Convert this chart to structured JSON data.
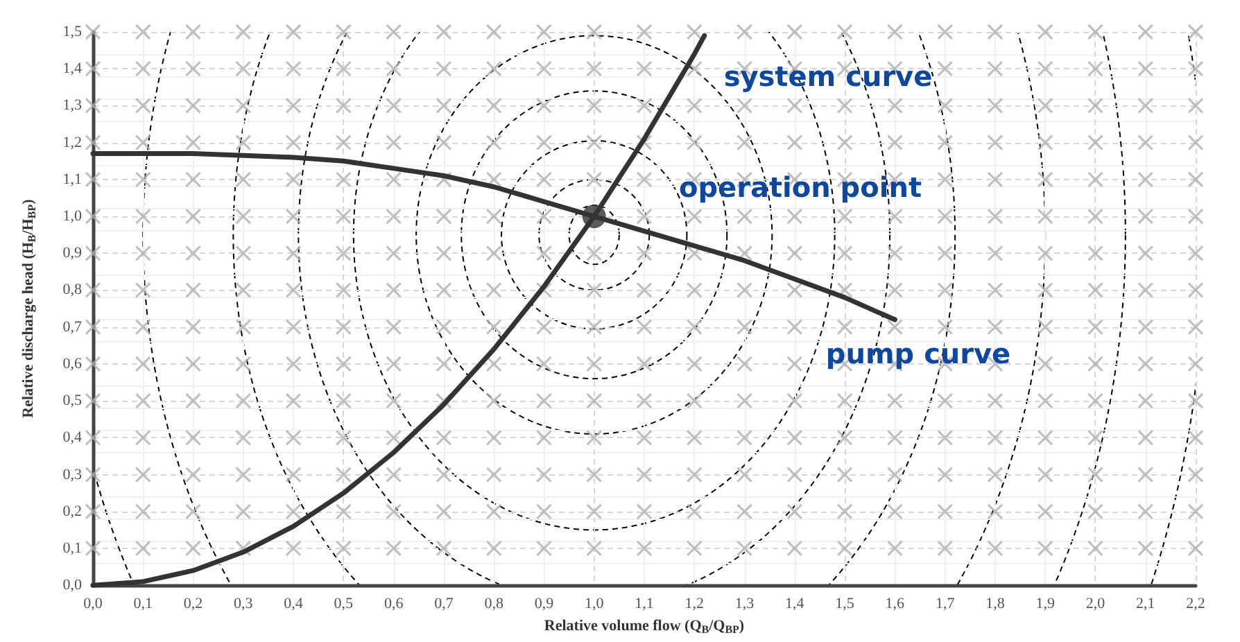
{
  "chart_data": {
    "type": "line",
    "xlabel": "Relative volume flow (Q$_{B}$/Q$_{BP}$)",
    "ylabel": "Relative discharge head (H$_{B}$/H$_{BP}$)",
    "xlim": [
      0,
      2.2
    ],
    "ylim": [
      0,
      1.5
    ],
    "xticks": [
      {
        "value": 0,
        "label": "0,0"
      },
      {
        "value": 0.1,
        "label": "0,1"
      },
      {
        "value": 0.2,
        "label": "0,2"
      },
      {
        "value": 0.3,
        "label": "0,3"
      },
      {
        "value": 0.4,
        "label": "0,4"
      },
      {
        "value": 0.5,
        "label": "0,5"
      },
      {
        "value": 0.6,
        "label": "0,6"
      },
      {
        "value": 0.7,
        "label": "0,7"
      },
      {
        "value": 0.8,
        "label": "0,8"
      },
      {
        "value": 0.9,
        "label": "0,9"
      },
      {
        "value": 1.0,
        "label": "1,0"
      },
      {
        "value": 1.1,
        "label": "1,1"
      },
      {
        "value": 1.2,
        "label": "1,2"
      },
      {
        "value": 1.3,
        "label": "1,3"
      },
      {
        "value": 1.4,
        "label": "1,4"
      },
      {
        "value": 1.5,
        "label": "1,5"
      },
      {
        "value": 1.6,
        "label": "1,6"
      },
      {
        "value": 1.7,
        "label": "1,7"
      },
      {
        "value": 1.8,
        "label": "1,8"
      },
      {
        "value": 1.9,
        "label": "1,9"
      },
      {
        "value": 2.0,
        "label": "2,0"
      },
      {
        "value": 2.1,
        "label": "2,1"
      },
      {
        "value": 2.2,
        "label": "2,2"
      }
    ],
    "yticks": [
      {
        "value": 0,
        "label": "0,0"
      },
      {
        "value": 0.1,
        "label": "0,1"
      },
      {
        "value": 0.2,
        "label": "0,2"
      },
      {
        "value": 0.3,
        "label": "0,3"
      },
      {
        "value": 0.4,
        "label": "0,4"
      },
      {
        "value": 0.5,
        "label": "0,5"
      },
      {
        "value": 0.6,
        "label": "0,6"
      },
      {
        "value": 0.7,
        "label": "0,7"
      },
      {
        "value": 0.8,
        "label": "0,8"
      },
      {
        "value": 0.9,
        "label": "0,9"
      },
      {
        "value": 1.0,
        "label": "1,0"
      },
      {
        "value": 1.1,
        "label": "1,1"
      },
      {
        "value": 1.2,
        "label": "1,2"
      },
      {
        "value": 1.3,
        "label": "1,3"
      },
      {
        "value": 1.4,
        "label": "1,4"
      },
      {
        "value": 1.5,
        "label": "1,5"
      }
    ],
    "grid": true,
    "marker": "none",
    "line_style": "solid",
    "annotations": [
      "system curve",
      "operation point",
      "pump curve"
    ],
    "series": [
      {
        "type": "scatter",
        "marker": "cross",
        "color": "#b0b0b0",
        "x": [
          0,
          0.1,
          0.2,
          0.3,
          0.4,
          0.5,
          0.6,
          0.7,
          0.8,
          0.9,
          1.0,
          1.1,
          1.2,
          1.3,
          1.4,
          1.5,
          1.6,
          1.7,
          1.8,
          1.9,
          2.0,
          2.1,
          2.2,
          0,
          0.1,
          0.2,
          0.3,
          0.4,
          0.5,
          0.6,
          0.7,
          0.8,
          0.9,
          1.0,
          1.1,
          1.2,
          1.3,
          1.4,
          1.5,
          1.6,
          1.7,
          1.8,
          1.9,
          2.0,
          2.1,
          2.2,
          0,
          0.1,
          0.2,
          0.3,
          0.4,
          0.5,
          0.6,
          0.7,
          0.8,
          0.9,
          1.0,
          1.1,
          1.2,
          1.3,
          1.4,
          1.5,
          1.6,
          1.7,
          1.8,
          1.9,
          2.0,
          2.1,
          2.2,
          0,
          0.1,
          0.2,
          0.3,
          0.4,
          0.5,
          0.6,
          0.7,
          0.8,
          0.9,
          1.0,
          1.1,
          1.2,
          1.3,
          1.4,
          1.5,
          1.6,
          1.7,
          1.8,
          1.9,
          2.0,
          2.1,
          2.2,
          0,
          0.1,
          0.2,
          0.3,
          0.4,
          0.5,
          0.6,
          0.7,
          0.8,
          0.9,
          1.0,
          1.1,
          1.2,
          1.3,
          1.4,
          1.5,
          1.6,
          1.7,
          1.8,
          1.9,
          2.0,
          2.1,
          2.2,
          0,
          0.1,
          0.2,
          0.3,
          0.4,
          0.5,
          0.6,
          0.7,
          0.8,
          0.9,
          1.0,
          1.1,
          1.2,
          1.3,
          1.4,
          1.5,
          1.6,
          1.7,
          1.8,
          1.9,
          2.0,
          2.1,
          2.2,
          0,
          0.1,
          0.2,
          0.3,
          0.4,
          0.5,
          0.6,
          0.7,
          0.8,
          0.9,
          1.0,
          1.1,
          1.2,
          1.3,
          1.4,
          1.5,
          1.6,
          1.7,
          1.8,
          1.9,
          2.0,
          2.1,
          2.2,
          0,
          0.1,
          0.2,
          0.3,
          0.4,
          0.5,
          0.6,
          0.7,
          0.8,
          0.9,
          1.0,
          1.1,
          1.2,
          1.3,
          1.4,
          1.5,
          1.6,
          1.7,
          1.8,
          1.9,
          2.0,
          2.1,
          2.2,
          0,
          0.1,
          0.2,
          0.3,
          0.4,
          0.5,
          0.6,
          0.7,
          0.8,
          0.9,
          1.0,
          1.1,
          1.2,
          1.3,
          1.4,
          1.5,
          1.6,
          1.7,
          1.8,
          1.9,
          2.0,
          2.1,
          2.2,
          0,
          0.1,
          0.2,
          0.3,
          0.4,
          0.5,
          0.6,
          0.7,
          0.8,
          0.9,
          1.0,
          1.1,
          1.2,
          1.3,
          1.4,
          1.5,
          1.6,
          1.7,
          1.8,
          1.9,
          2.0,
          2.1,
          2.2,
          0,
          0.1,
          0.2,
          0.3,
          0.4,
          0.5,
          0.6,
          0.7,
          0.8,
          0.9,
          1.0,
          1.1,
          1.2,
          1.3,
          1.4,
          1.5,
          1.6,
          1.7,
          1.8,
          1.9,
          2.0,
          2.1,
          2.2,
          0,
          0.1,
          0.2,
          0.3,
          0.4,
          0.5,
          0.6,
          0.7,
          0.8,
          0.9,
          1.0,
          1.1,
          1.2,
          1.3,
          1.4,
          1.5,
          1.6,
          1.7,
          1.8,
          1.9,
          2.0,
          2.1,
          2.2,
          0,
          0.1,
          0.2,
          0.3,
          0.4,
          0.5,
          0.6,
          0.7,
          0.8,
          0.9,
          1.0,
          1.1,
          1.2,
          1.3,
          1.4,
          1.5,
          1.6,
          1.7,
          1.8,
          1.9,
          2.0,
          2.1,
          2.2,
          0,
          0.1,
          0.2,
          0.3,
          0.4,
          0.5,
          0.6,
          0.7,
          0.8,
          0.9,
          1.0,
          1.1,
          1.2,
          1.3,
          1.4,
          1.5,
          1.6,
          1.7,
          1.8,
          1.9,
          2.0,
          2.1,
          2.2,
          0,
          0.1,
          0.2,
          0.3,
          0.4,
          0.5,
          0.6,
          0.7,
          0.8,
          0.9,
          1.0,
          1.1,
          1.2,
          1.3,
          1.4,
          1.5,
          1.6,
          1.7,
          1.8,
          1.9,
          2.0,
          2.1,
          2.2
        ],
        "values": [
          0.1,
          0.1,
          0.1,
          0.1,
          0.1,
          0.1,
          0.1,
          0.1,
          0.1,
          0.1,
          0.1,
          0.1,
          0.1,
          0.1,
          0.1,
          0.1,
          0.1,
          0.1,
          0.1,
          0.1,
          0.1,
          0.1,
          0.1,
          0.2,
          0.2,
          0.2,
          0.2,
          0.2,
          0.2,
          0.2,
          0.2,
          0.2,
          0.2,
          0.2,
          0.2,
          0.2,
          0.2,
          0.2,
          0.2,
          0.2,
          0.2,
          0.2,
          0.2,
          0.2,
          0.2,
          0.2,
          0.3,
          0.3,
          0.3,
          0.3,
          0.3,
          0.3,
          0.3,
          0.3,
          0.3,
          0.3,
          0.3,
          0.3,
          0.3,
          0.3,
          0.3,
          0.3,
          0.3,
          0.3,
          0.3,
          0.3,
          0.3,
          0.3,
          0.3,
          0.4,
          0.4,
          0.4,
          0.4,
          0.4,
          0.4,
          0.4,
          0.4,
          0.4,
          0.4,
          0.4,
          0.4,
          0.4,
          0.4,
          0.4,
          0.4,
          0.4,
          0.4,
          0.4,
          0.4,
          0.4,
          0.4,
          0.4,
          0.5,
          0.5,
          0.5,
          0.5,
          0.5,
          0.5,
          0.5,
          0.5,
          0.5,
          0.5,
          0.5,
          0.5,
          0.5,
          0.5,
          0.5,
          0.5,
          0.5,
          0.5,
          0.5,
          0.5,
          0.5,
          0.5,
          0.5,
          0.6,
          0.6,
          0.6,
          0.6,
          0.6,
          0.6,
          0.6,
          0.6,
          0.6,
          0.6,
          0.6,
          0.6,
          0.6,
          0.6,
          0.6,
          0.6,
          0.6,
          0.6,
          0.6,
          0.6,
          0.6,
          0.6,
          0.6,
          0.7,
          0.7,
          0.7,
          0.7,
          0.7,
          0.7,
          0.7,
          0.7,
          0.7,
          0.7,
          0.7,
          0.7,
          0.7,
          0.7,
          0.7,
          0.7,
          0.7,
          0.7,
          0.7,
          0.7,
          0.7,
          0.7,
          0.7,
          0.8,
          0.8,
          0.8,
          0.8,
          0.8,
          0.8,
          0.8,
          0.8,
          0.8,
          0.8,
          0.8,
          0.8,
          0.8,
          0.8,
          0.8,
          0.8,
          0.8,
          0.8,
          0.8,
          0.8,
          0.8,
          0.8,
          0.8,
          0.9,
          0.9,
          0.9,
          0.9,
          0.9,
          0.9,
          0.9,
          0.9,
          0.9,
          0.9,
          0.9,
          0.9,
          0.9,
          0.9,
          0.9,
          0.9,
          0.9,
          0.9,
          0.9,
          0.9,
          0.9,
          0.9,
          0.9,
          1.0,
          1.0,
          1.0,
          1.0,
          1.0,
          1.0,
          1.0,
          1.0,
          1.0,
          1.0,
          null,
          1.0,
          1.0,
          1.0,
          1.0,
          1.0,
          1.0,
          1.0,
          1.0,
          1.0,
          1.0,
          1.0,
          1.0,
          1.1,
          1.1,
          1.1,
          1.1,
          1.1,
          1.1,
          1.1,
          1.1,
          1.1,
          1.1,
          1.1,
          1.1,
          1.1,
          1.1,
          1.1,
          1.1,
          1.1,
          1.1,
          1.1,
          1.1,
          1.1,
          1.1,
          1.1,
          1.2,
          1.2,
          1.2,
          1.2,
          1.2,
          1.2,
          1.2,
          1.2,
          1.2,
          1.2,
          1.2,
          1.2,
          1.2,
          1.2,
          1.2,
          1.2,
          1.2,
          1.2,
          1.2,
          1.2,
          1.2,
          1.2,
          1.2,
          1.3,
          1.3,
          1.3,
          1.3,
          1.3,
          1.3,
          1.3,
          1.3,
          1.3,
          1.3,
          1.3,
          1.3,
          1.3,
          1.3,
          1.3,
          1.3,
          1.3,
          1.3,
          1.3,
          1.3,
          1.3,
          1.3,
          1.3,
          1.4,
          1.4,
          1.4,
          1.4,
          1.4,
          1.4,
          1.4,
          1.4,
          1.4,
          1.4,
          1.4,
          1.4,
          1.4,
          1.4,
          1.4,
          1.4,
          1.4,
          1.4,
          1.4,
          1.4,
          1.4,
          1.4,
          1.4,
          1.5,
          1.5,
          1.5,
          1.5,
          1.5,
          1.5,
          1.5,
          1.5,
          1.5,
          1.5,
          1.5,
          1.5,
          1.5,
          1.5,
          1.5,
          1.5,
          1.5,
          1.5,
          1.5,
          1.5,
          1.5,
          1.5,
          1.5
        ]
      },
      {
        "color": "#333333",
        "x": [
          0,
          0.2,
          0.4,
          0.5,
          0.6,
          0.7,
          0.8,
          0.9,
          1.0,
          1.1,
          1.2,
          1.3,
          1.4,
          1.5,
          1.6
        ],
        "values": [
          1.17,
          1.17,
          1.16,
          1.15,
          1.13,
          1.11,
          1.08,
          1.04,
          1.0,
          0.96,
          0.92,
          0.88,
          0.83,
          0.78,
          0.72
        ]
      },
      {
        "color": "#333333",
        "x": [
          0,
          0.1,
          0.2,
          0.3,
          0.4,
          0.5,
          0.6,
          0.7,
          0.8,
          0.9,
          1.0,
          1.1,
          1.2,
          1.22
        ],
        "values": [
          0,
          0.01,
          0.04,
          0.09,
          0.16,
          0.25,
          0.36,
          0.49,
          0.64,
          0.81,
          1.0,
          1.21,
          1.44,
          1.49
        ]
      },
      {
        "type": "scatter",
        "marker": "circle",
        "color": "#333333",
        "x": [
          1.0
        ],
        "values": [
          1.0
        ]
      }
    ]
  }
}
